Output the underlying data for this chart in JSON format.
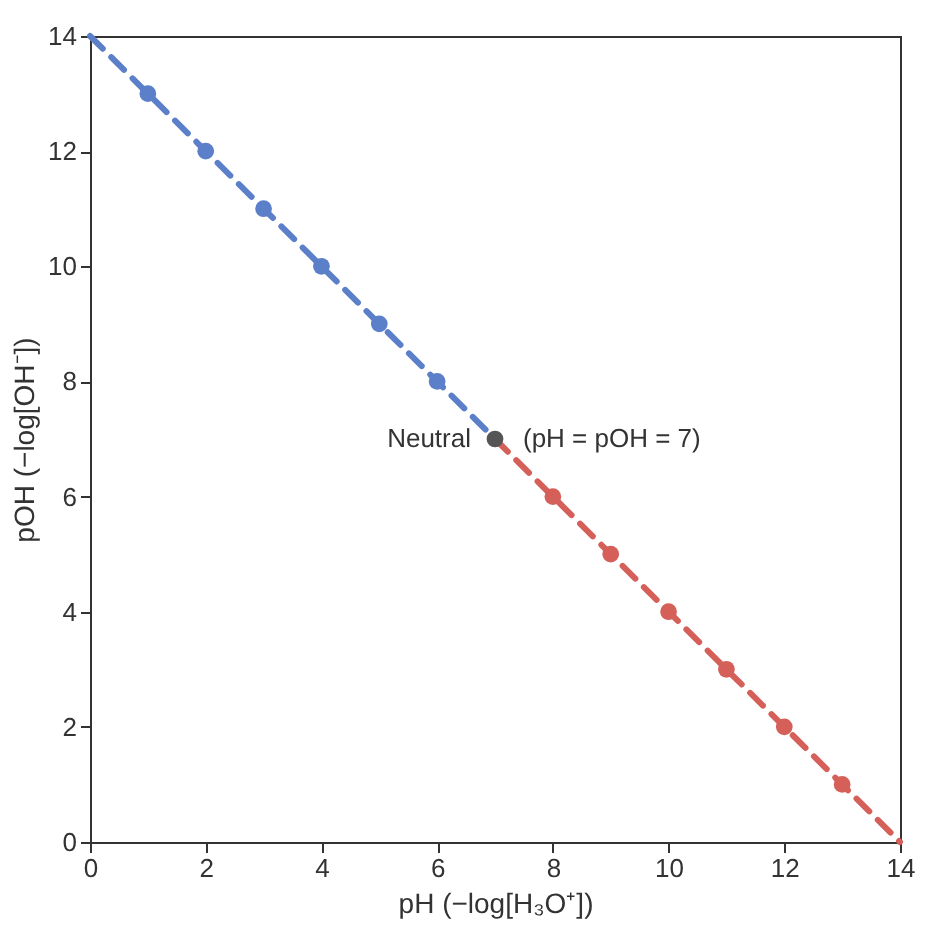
{
  "chart_data": {
    "type": "line",
    "xlabel": "pH (−log[H₃O⁺])",
    "ylabel": "pOH (−log[OH⁻])",
    "xlim": [
      0,
      14
    ],
    "ylim": [
      0,
      14
    ],
    "xticks": [
      0,
      2,
      4,
      6,
      8,
      10,
      12,
      14
    ],
    "yticks": [
      0,
      2,
      4,
      6,
      8,
      10,
      12,
      14
    ],
    "grid": false,
    "series": [
      {
        "color": "#5b7fc9",
        "line_style": "dashed",
        "marker": "none",
        "x": [
          0,
          7
        ],
        "values": [
          14,
          7
        ]
      },
      {
        "color": "#d5605a",
        "line_style": "dashed",
        "marker": "none",
        "x": [
          7,
          14
        ],
        "values": [
          7,
          0
        ]
      },
      {
        "type": "scatter",
        "color": "#5b7fc9",
        "marker": "circle",
        "x": [
          1,
          2,
          3,
          4,
          5,
          6
        ],
        "values": [
          13,
          12,
          11,
          10,
          9,
          8
        ]
      },
      {
        "type": "scatter",
        "color": "#d5605a",
        "marker": "circle",
        "x": [
          8,
          9,
          10,
          11,
          12,
          13
        ],
        "values": [
          6,
          5,
          4,
          3,
          2,
          1
        ]
      },
      {
        "type": "scatter",
        "color": "#555555",
        "marker": "circle",
        "x": [
          7
        ],
        "values": [
          7
        ]
      }
    ],
    "annotations": [
      {
        "text": "Neutral",
        "x": 7,
        "y": 7
      },
      {
        "text": "(pH = pOH = 7)",
        "x": 7,
        "y": 7
      }
    ]
  }
}
